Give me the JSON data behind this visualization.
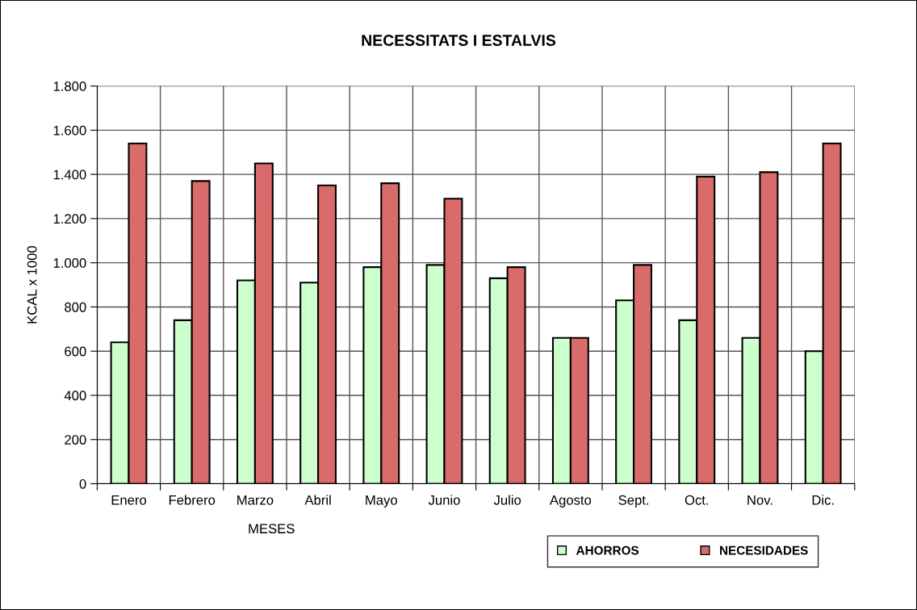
{
  "chart_data": {
    "type": "bar",
    "title": "NECESSITATS I ESTALVIS",
    "xlabel": "MESES",
    "ylabel": "KCAL x 1000",
    "categories": [
      "Enero",
      "Febrero",
      "Marzo",
      "Abril",
      "Mayo",
      "Junio",
      "Julio",
      "Agosto",
      "Sept.",
      "Oct.",
      "Nov.",
      "Dic."
    ],
    "series": [
      {
        "name": "AHORROS",
        "color": "#ccffcc",
        "values": [
          640,
          740,
          920,
          910,
          980,
          990,
          930,
          660,
          830,
          740,
          660,
          600
        ]
      },
      {
        "name": "NECESIDADES",
        "color": "#d96b6b",
        "values": [
          1540,
          1370,
          1450,
          1350,
          1360,
          1290,
          980,
          660,
          990,
          1390,
          1410,
          1540
        ]
      }
    ],
    "ylim": [
      0,
      1800
    ],
    "yticks": [
      0,
      200,
      400,
      600,
      800,
      {
        "value": 1000,
        "label": "1.000"
      },
      {
        "value": 1200,
        "label": "1.200"
      },
      {
        "value": 1400,
        "label": "1.400"
      },
      {
        "value": 1600,
        "label": "1.600"
      },
      {
        "value": 1800,
        "label": "1.800"
      }
    ],
    "grid": true,
    "legend": "bottom right"
  }
}
